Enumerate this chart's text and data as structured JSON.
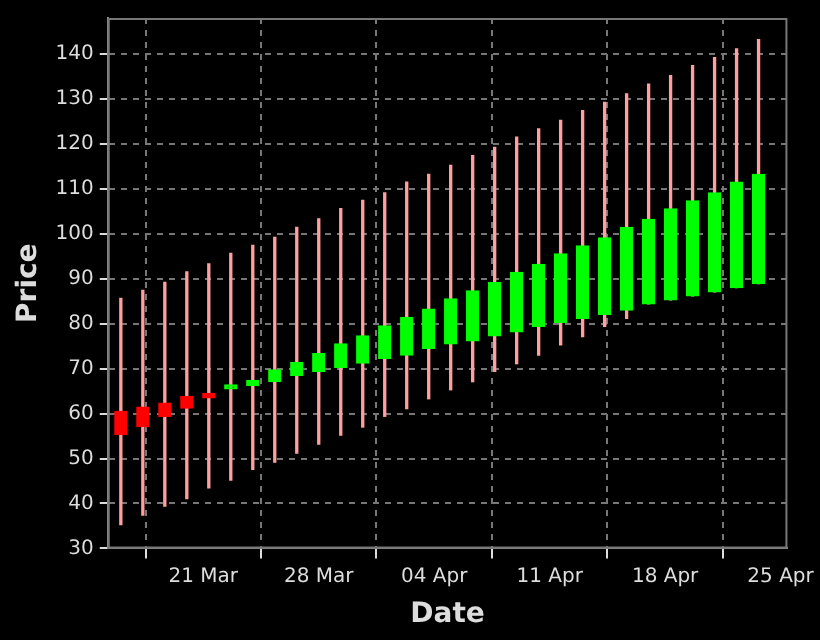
{
  "chart_data": {
    "type": "candlestick",
    "xlabel": "Date",
    "ylabel": "Price",
    "x": [
      "--03-16T00:00",
      "--03-17T08:00",
      "--03-18T16:00",
      "--03-20T00:00",
      "--03-21T08:00",
      "--03-22T16:00",
      "--03-24T00:00",
      "--03-25T08:00",
      "--03-26T16:00",
      "--03-28T00:00",
      "--03-29T08:00",
      "--03-30T16:00",
      "--04-01T00:00",
      "--04-02T08:00",
      "--04-03T16:00",
      "--04-05T00:00",
      "--04-06T08:00",
      "--04-07T16:00",
      "--04-09T00:00",
      "--04-10T08:00",
      "--04-11T16:00",
      "--04-13T00:00",
      "--04-14T08:00",
      "--04-15T16:00",
      "--04-17T00:00",
      "--04-18T08:00",
      "--04-19T16:00",
      "--04-21T00:00",
      "--04-22T08:00",
      "--04-23T16:00"
    ],
    "ohlc": [
      [
        60.5,
        85.6,
        35.3,
        55.3
      ],
      [
        61.4,
        87.4,
        37.4,
        57.1
      ],
      [
        62.3,
        89.2,
        39.4,
        59.4
      ],
      [
        63.8,
        91.5,
        41.1,
        61.2
      ],
      [
        64.5,
        93.3,
        43.5,
        63.5
      ],
      [
        65.5,
        95.6,
        45.2,
        65.5
      ],
      [
        66.2,
        97.4,
        47.6,
        67.4
      ],
      [
        67.1,
        99.2,
        49.2,
        69.7
      ],
      [
        68.5,
        101.4,
        51.2,
        71.4
      ],
      [
        69.4,
        103.3,
        53.2,
        73.3
      ],
      [
        70.3,
        105.6,
        55.2,
        75.5
      ],
      [
        71.2,
        107.4,
        57.0,
        77.3
      ],
      [
        72.3,
        109.1,
        59.4,
        79.5
      ],
      [
        73.0,
        111.5,
        61.1,
        81.4
      ],
      [
        74.5,
        113.2,
        63.3,
        83.2
      ],
      [
        75.5,
        115.2,
        65.3,
        85.5
      ],
      [
        76.2,
        117.4,
        67.1,
        87.3
      ],
      [
        77.3,
        119.2,
        69.4,
        89.1
      ],
      [
        78.2,
        121.5,
        71.1,
        91.4
      ],
      [
        79.4,
        123.3,
        73.0,
        93.2
      ],
      [
        80.3,
        125.2,
        75.3,
        95.5
      ],
      [
        81.2,
        127.4,
        77.1,
        97.3
      ],
      [
        82.1,
        129.2,
        79.4,
        99.1
      ],
      [
        83.0,
        131.1,
        81.2,
        101.4
      ],
      [
        84.4,
        133.3,
        84.4,
        103.2
      ],
      [
        85.3,
        135.2,
        85.3,
        105.5
      ],
      [
        86.2,
        137.4,
        86.2,
        107.3
      ],
      [
        87.1,
        139.2,
        87.1,
        109.1
      ],
      [
        88.0,
        141.1,
        88.0,
        111.5
      ],
      [
        88.9,
        143.2,
        88.9,
        113.2
      ]
    ],
    "xlim": [
      "--03-15T05:00",
      "--04-25T10:00"
    ],
    "xticks": [
      {
        "value": "--03-21",
        "label": "21 Mar"
      },
      {
        "value": "--03-28",
        "label": "28 Mar"
      },
      {
        "value": "--04-04",
        "label": "04 Apr"
      },
      {
        "value": "--04-11",
        "label": "11 Apr"
      },
      {
        "value": "--04-18",
        "label": "18 Apr"
      },
      {
        "value": "--04-25",
        "label": "25 Apr"
      }
    ],
    "ylim": [
      30,
      148
    ],
    "yticks": [
      30,
      40,
      50,
      60,
      70,
      80,
      90,
      100,
      110,
      120,
      130,
      140
    ],
    "grid": true,
    "legend": false
  }
}
